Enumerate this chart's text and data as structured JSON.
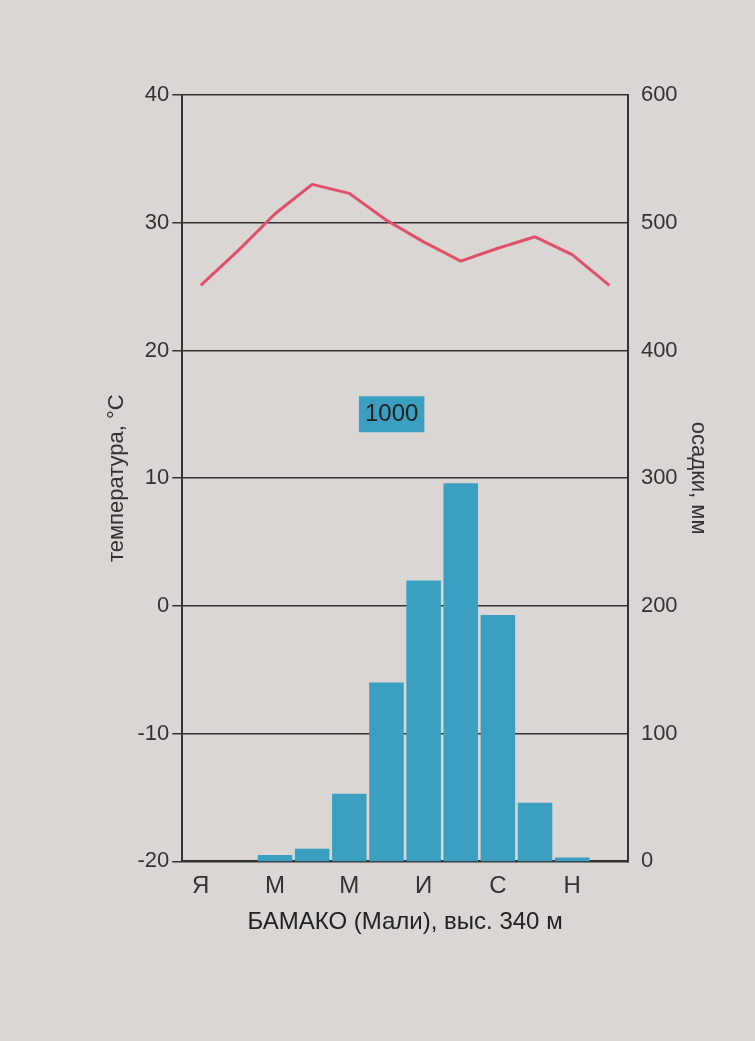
{
  "chart_data": {
    "type": "bar",
    "xlabel": "БАМАКО (Мали), выс. 340 м",
    "ylabel": "температура, °С",
    "y2label": "осадки, мм",
    "categories": [
      "Я",
      null,
      "М",
      null,
      "М",
      null,
      "И",
      null,
      "С",
      null,
      "Н",
      null
    ],
    "series": [
      {
        "axis": "y2",
        "color": "#3a9fc0",
        "values": [
          0,
          0,
          5,
          10,
          53,
          140,
          220,
          296,
          193,
          46,
          3,
          0
        ]
      },
      {
        "type": "line",
        "axis": "y",
        "color": "#e0506a",
        "values": [
          25.1,
          27.8,
          30.7,
          33,
          32.3,
          30.2,
          28.5,
          27,
          28,
          28.9,
          27.5,
          25.1
        ]
      }
    ],
    "ylim": [
      -20,
      40
    ],
    "yticks": [
      -20,
      -10,
      0,
      10,
      20,
      30,
      40
    ],
    "y2lim": [
      0,
      600
    ],
    "y2ticks": [
      0,
      100,
      200,
      300,
      400,
      500,
      600
    ],
    "grid": "y",
    "legend": false,
    "marker": "none",
    "annotations": [
      "1000"
    ]
  }
}
